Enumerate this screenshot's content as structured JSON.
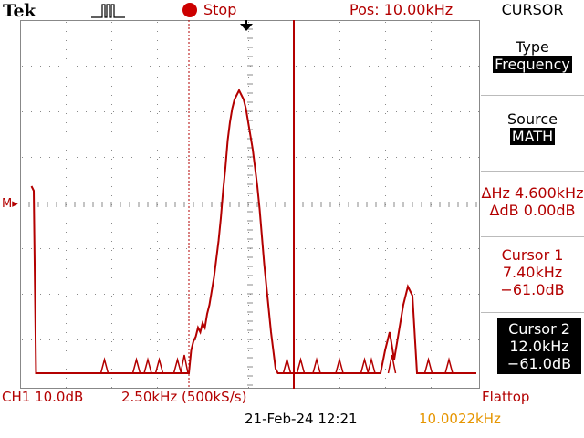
{
  "header": {
    "brand": "Tek",
    "trigger_icon": "pulse-icon",
    "status": "Stop",
    "status_color": "#cc0000",
    "position": "Pos: 10.00kHz"
  },
  "menu": {
    "title": "CURSOR",
    "type_label": "Type",
    "type_value": "Frequency",
    "source_label": "Source",
    "source_value": "MATH",
    "delta_hz": "ΔHz 4.600kHz",
    "delta_db": "ΔdB 0.00dB",
    "cursor1_title": "Cursor 1",
    "cursor1_freq": "7.40kHz",
    "cursor1_db": "−61.0dB",
    "cursor2_title": "Cursor 2",
    "cursor2_freq": "12.0kHz",
    "cursor2_db": "−61.0dB"
  },
  "markers": {
    "math_marker": "M▸"
  },
  "footer": {
    "channel_scale": "CH1 10.0dB",
    "freq_scale": "2.50kHz (500kS/s)",
    "window": "Flattop",
    "date_time": "21-Feb-24 12:21",
    "trigger_freq": "10.0022kHz",
    "trigger_freq_color": "#e69500"
  },
  "colors": {
    "trace": "#b30000",
    "accent": "#b30000"
  },
  "trace": {
    "samples": [
      [
        0.5,
        -20
      ],
      [
        0.6,
        -21
      ],
      [
        0.7,
        -61
      ],
      [
        0.8,
        -61
      ],
      [
        0.9,
        -61
      ],
      [
        1.0,
        -61
      ],
      [
        1.1,
        -61
      ],
      [
        1.2,
        -61
      ],
      [
        1.3,
        -61
      ],
      [
        1.4,
        -61
      ],
      [
        1.5,
        -61
      ],
      [
        1.6,
        -61
      ],
      [
        1.7,
        -61
      ],
      [
        1.8,
        -61
      ],
      [
        1.9,
        -61
      ],
      [
        2.0,
        -61
      ],
      [
        2.1,
        -61
      ],
      [
        2.2,
        -61
      ],
      [
        2.3,
        -61
      ],
      [
        2.4,
        -61
      ],
      [
        2.5,
        -61
      ],
      [
        2.6,
        -61
      ],
      [
        2.7,
        -61
      ],
      [
        2.8,
        -61
      ],
      [
        2.9,
        -61
      ],
      [
        3.0,
        -61
      ],
      [
        3.1,
        -61
      ],
      [
        3.2,
        -61
      ],
      [
        3.3,
        -61
      ],
      [
        3.4,
        -61
      ],
      [
        3.5,
        -61
      ],
      [
        3.6,
        -61
      ],
      [
        3.7,
        -61
      ],
      [
        3.8,
        -61
      ],
      [
        3.9,
        -61
      ],
      [
        4.0,
        -61
      ],
      [
        4.1,
        -61
      ],
      [
        4.2,
        -61
      ],
      [
        4.3,
        -61
      ],
      [
        4.4,
        -61
      ],
      [
        4.5,
        -61
      ],
      [
        4.6,
        -61
      ],
      [
        4.7,
        -61
      ],
      [
        4.8,
        -61
      ],
      [
        4.9,
        -61
      ],
      [
        5.0,
        -61
      ],
      [
        5.1,
        -61
      ],
      [
        5.2,
        -61
      ],
      [
        5.3,
        -61
      ],
      [
        5.4,
        -61
      ],
      [
        5.5,
        -61
      ],
      [
        5.6,
        -61
      ],
      [
        5.7,
        -61
      ],
      [
        5.8,
        -61
      ],
      [
        5.9,
        -61
      ],
      [
        6.0,
        -61
      ],
      [
        6.1,
        -61
      ],
      [
        6.2,
        -61
      ],
      [
        6.3,
        -61
      ],
      [
        6.4,
        -61
      ],
      [
        6.5,
        -61
      ],
      [
        6.6,
        -61
      ],
      [
        6.7,
        -61
      ],
      [
        6.8,
        -61
      ],
      [
        6.9,
        -61
      ],
      [
        7.0,
        -61
      ],
      [
        7.1,
        -61
      ],
      [
        7.2,
        -61
      ],
      [
        7.3,
        -61
      ],
      [
        7.4,
        -61
      ],
      [
        7.5,
        -56
      ],
      [
        7.6,
        -54
      ],
      [
        7.7,
        -53
      ],
      [
        7.8,
        -51
      ],
      [
        7.9,
        -52
      ],
      [
        8.0,
        -50
      ],
      [
        8.1,
        -51
      ],
      [
        8.2,
        -48
      ],
      [
        8.3,
        -46
      ],
      [
        8.4,
        -43
      ],
      [
        8.5,
        -40
      ],
      [
        8.6,
        -36
      ],
      [
        8.7,
        -32
      ],
      [
        8.8,
        -27
      ],
      [
        8.9,
        -21
      ],
      [
        9.0,
        -16
      ],
      [
        9.1,
        -10
      ],
      [
        9.2,
        -6
      ],
      [
        9.3,
        -3
      ],
      [
        9.4,
        -1
      ],
      [
        9.5,
        0
      ],
      [
        9.6,
        1
      ],
      [
        9.7,
        0
      ],
      [
        9.8,
        -1
      ],
      [
        9.9,
        -3
      ],
      [
        10.0,
        -6
      ],
      [
        10.1,
        -9
      ],
      [
        10.2,
        -12
      ],
      [
        10.3,
        -16
      ],
      [
        10.4,
        -20
      ],
      [
        10.5,
        -25
      ],
      [
        10.6,
        -31
      ],
      [
        10.7,
        -37
      ],
      [
        10.8,
        -42
      ],
      [
        10.9,
        -47
      ],
      [
        11.0,
        -52
      ],
      [
        11.1,
        -56
      ],
      [
        11.2,
        -60
      ],
      [
        11.3,
        -61
      ],
      [
        11.4,
        -61
      ],
      [
        11.5,
        -61
      ],
      [
        11.6,
        -61
      ],
      [
        11.7,
        -61
      ],
      [
        11.8,
        -61
      ],
      [
        11.9,
        -61
      ],
      [
        12.0,
        -61
      ],
      [
        12.2,
        -61
      ],
      [
        12.4,
        -61
      ],
      [
        12.6,
        -61
      ],
      [
        12.8,
        -61
      ],
      [
        13.0,
        -61
      ],
      [
        13.2,
        -61
      ],
      [
        13.4,
        -61
      ],
      [
        13.6,
        -61
      ],
      [
        13.8,
        -61
      ],
      [
        14.0,
        -61
      ],
      [
        14.2,
        -61
      ],
      [
        14.4,
        -61
      ],
      [
        14.6,
        -61
      ],
      [
        14.8,
        -61
      ],
      [
        15.0,
        -61
      ],
      [
        15.2,
        -61
      ],
      [
        15.4,
        -61
      ],
      [
        15.6,
        -61
      ],
      [
        15.8,
        -61
      ],
      [
        16.0,
        -56
      ],
      [
        16.2,
        -52
      ],
      [
        16.4,
        -58
      ],
      [
        16.6,
        -52
      ],
      [
        16.8,
        -46
      ],
      [
        17.0,
        -42
      ],
      [
        17.2,
        -44
      ],
      [
        17.4,
        -61
      ],
      [
        17.6,
        -61
      ],
      [
        17.8,
        -61
      ],
      [
        18.0,
        -61
      ],
      [
        18.2,
        -61
      ],
      [
        18.4,
        -61
      ],
      [
        18.6,
        -61
      ],
      [
        18.8,
        -61
      ],
      [
        19.0,
        -61
      ],
      [
        19.2,
        -61
      ],
      [
        19.4,
        -61
      ],
      [
        19.6,
        -61
      ],
      [
        19.8,
        -61
      ],
      [
        20.0,
        -61
      ]
    ],
    "noise_blips": [
      [
        3.7,
        -58
      ],
      [
        5.1,
        -58
      ],
      [
        5.6,
        -58
      ],
      [
        6.1,
        -58
      ],
      [
        6.9,
        -58
      ],
      [
        7.2,
        -57
      ],
      [
        11.7,
        -58
      ],
      [
        12.3,
        -58
      ],
      [
        13.0,
        -58
      ],
      [
        14.0,
        -58
      ],
      [
        15.1,
        -58
      ],
      [
        15.4,
        -58
      ],
      [
        16.3,
        -57
      ],
      [
        17.9,
        -58
      ],
      [
        18.8,
        -58
      ]
    ]
  }
}
